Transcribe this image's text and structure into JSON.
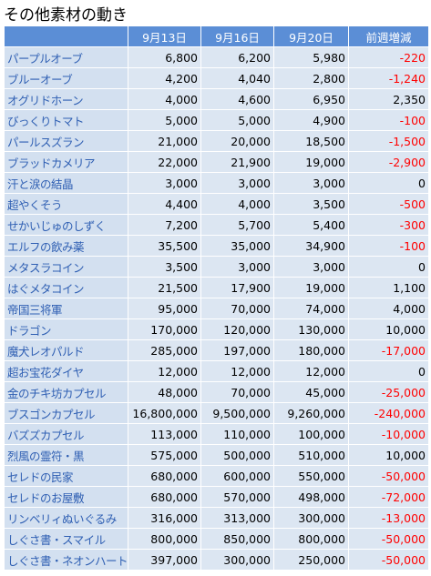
{
  "title": "その他素材の動き",
  "table": {
    "header": [
      "9月13日",
      "9月16日",
      "9月20日",
      "前週増減"
    ],
    "rows": [
      [
        "パープルオーブ",
        "6,800",
        "6,200",
        "5,980",
        "-220"
      ],
      [
        "ブルーオーブ",
        "4,200",
        "4,040",
        "2,800",
        "-1,240"
      ],
      [
        "オグリドホーン",
        "4,000",
        "4,600",
        "6,950",
        "2,350"
      ],
      [
        "びっくりトマト",
        "5,000",
        "5,000",
        "4,900",
        "-100"
      ],
      [
        "パールスズラン",
        "21,000",
        "20,000",
        "18,500",
        "-1,500"
      ],
      [
        "ブラッドカメリア",
        "22,000",
        "21,900",
        "19,000",
        "-2,900"
      ],
      [
        "汗と涙の結晶",
        "3,000",
        "3,000",
        "3,000",
        "0"
      ],
      [
        "超やくそう",
        "4,400",
        "4,000",
        "3,500",
        "-500"
      ],
      [
        "せかいじゅのしずく",
        "7,200",
        "5,700",
        "5,400",
        "-300"
      ],
      [
        "エルフの飲み薬",
        "35,500",
        "35,000",
        "34,900",
        "-100"
      ],
      [
        "メタスラコイン",
        "3,500",
        "3,000",
        "3,000",
        "0"
      ],
      [
        "はぐメタコイン",
        "21,500",
        "17,900",
        "19,000",
        "1,100"
      ],
      [
        "帝国三将軍",
        "95,000",
        "70,000",
        "74,000",
        "4,000"
      ],
      [
        "ドラゴン",
        "170,000",
        "120,000",
        "130,000",
        "10,000"
      ],
      [
        "魔犬レオパルド",
        "285,000",
        "197,000",
        "180,000",
        "-17,000"
      ],
      [
        "超お宝花ダイヤ",
        "12,000",
        "12,000",
        "12,000",
        "0"
      ],
      [
        "金のチキ坊カプセル",
        "48,000",
        "70,000",
        "45,000",
        "-25,000"
      ],
      [
        "ブスゴンカプセル",
        "16,800,000",
        "9,500,000",
        "9,260,000",
        "-240,000"
      ],
      [
        "バズズカプセル",
        "113,000",
        "110,000",
        "100,000",
        "-10,000"
      ],
      [
        "烈風の霊符・黒",
        "575,000",
        "500,000",
        "510,000",
        "10,000"
      ],
      [
        "セレドの民家",
        "680,000",
        "600,000",
        "550,000",
        "-50,000"
      ],
      [
        "セレドのお屋敷",
        "680,000",
        "570,000",
        "498,000",
        "-72,000"
      ],
      [
        "リンベリィぬいぐるみ",
        "316,000",
        "313,000",
        "300,000",
        "-13,000"
      ],
      [
        "しぐさ書・スマイル",
        "800,000",
        "850,000",
        "800,000",
        "-50,000"
      ],
      [
        "しぐさ書・ネオンハート",
        "397,000",
        "300,000",
        "250,000",
        "-50,000"
      ]
    ]
  }
}
